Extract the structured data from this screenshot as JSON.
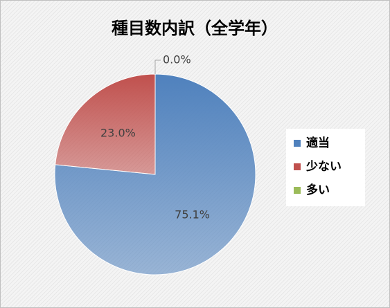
{
  "chart_data": {
    "type": "pie",
    "title": "種目数内訳（全学年）",
    "categories": [
      "適当",
      "少ない",
      "多い"
    ],
    "values": [
      75.1,
      23.0,
      0.0
    ],
    "value_labels": [
      "75.1%",
      "23.0%",
      "0.0%"
    ],
    "colors": [
      "#4f81bd",
      "#c0504d",
      "#9bbb59"
    ],
    "legend": "right"
  }
}
